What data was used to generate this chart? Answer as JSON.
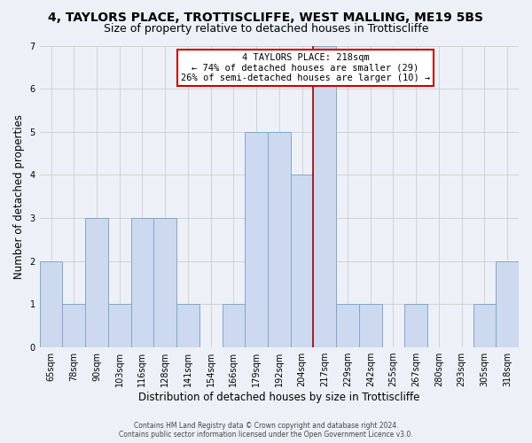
{
  "title": "4, TAYLORS PLACE, TROTTISCLIFFE, WEST MALLING, ME19 5BS",
  "subtitle": "Size of property relative to detached houses in Trottiscliffe",
  "xlabel": "Distribution of detached houses by size in Trottiscliffe",
  "ylabel": "Number of detached properties",
  "bar_labels": [
    "65sqm",
    "78sqm",
    "90sqm",
    "103sqm",
    "116sqm",
    "128sqm",
    "141sqm",
    "154sqm",
    "166sqm",
    "179sqm",
    "192sqm",
    "204sqm",
    "217sqm",
    "229sqm",
    "242sqm",
    "255sqm",
    "267sqm",
    "280sqm",
    "293sqm",
    "305sqm",
    "318sqm"
  ],
  "bar_values": [
    2,
    1,
    3,
    1,
    3,
    3,
    1,
    0,
    1,
    5,
    5,
    4,
    7,
    1,
    1,
    0,
    1,
    0,
    0,
    1,
    2
  ],
  "bar_color": "#ccd9ee",
  "bar_edge_color": "#7fa8cc",
  "highlight_index": 12,
  "highlight_line_color": "#aa0000",
  "ylim": [
    0,
    7
  ],
  "yticks": [
    0,
    1,
    2,
    3,
    4,
    5,
    6,
    7
  ],
  "annotation_title": "4 TAYLORS PLACE: 218sqm",
  "annotation_line1": "← 74% of detached houses are smaller (29)",
  "annotation_line2": "26% of semi-detached houses are larger (10) →",
  "annotation_box_color": "#ffffff",
  "annotation_box_edge": "#cc0000",
  "footer_line1": "Contains HM Land Registry data © Crown copyright and database right 2024.",
  "footer_line2": "Contains public sector information licensed under the Open Government Licence v3.0.",
  "background_color": "#edf1f7",
  "grid_color": "#cccccc",
  "title_fontsize": 10,
  "subtitle_fontsize": 9,
  "xlabel_fontsize": 8.5,
  "ylabel_fontsize": 8.5,
  "tick_fontsize": 7,
  "footer_fontsize": 5.5
}
